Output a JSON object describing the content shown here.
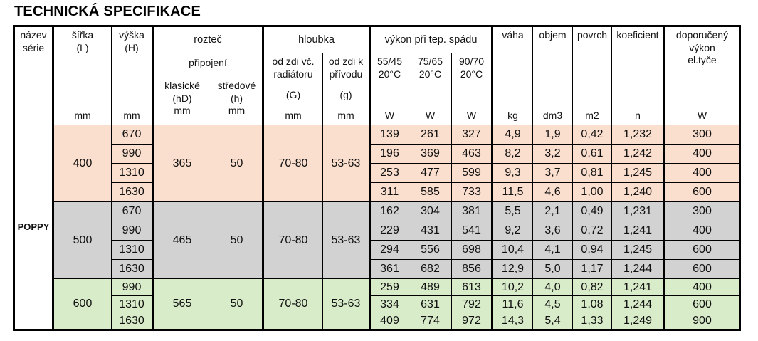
{
  "title": "TECHNICKÁ SPECIFIKACE",
  "colors": {
    "border": "#000000",
    "background": "#ffffff",
    "group_400": "#fbdfce",
    "group_500": "#d2d2d2",
    "group_600": "#d9ecca"
  },
  "table": {
    "header": {
      "name_label": "název\nsérie",
      "width_label": "šířka\n(L)",
      "width_unit": "mm",
      "height_label": "výška\n(H)",
      "height_unit": "mm",
      "pitch_group": "rozteč",
      "connection_label": "připojení",
      "pitch_classic": {
        "label": "klasické",
        "code": "(hD)",
        "unit": "mm"
      },
      "pitch_central": {
        "label": "středové",
        "code": "(h)",
        "unit": "mm"
      },
      "depth_group": "hloubka",
      "depth_incl": {
        "label": "od zdi vč.\nradiátoru",
        "code": "(G)",
        "unit": "mm"
      },
      "depth_supply": {
        "label": "od zdi k\npřívodu",
        "code": "(g)",
        "unit": "mm"
      },
      "power_group": "výkon při tep. spádu",
      "power_cols": [
        {
          "gradient": "55/45",
          "temp": "20°C",
          "unit": "W"
        },
        {
          "gradient": "75/65",
          "temp": "20°C",
          "unit": "W"
        },
        {
          "gradient": "90/70",
          "temp": "20°C",
          "unit": "W"
        }
      ],
      "weight": {
        "label": "váha",
        "unit": "kg"
      },
      "volume": {
        "label": "objem",
        "unit": "dm3"
      },
      "surface": {
        "label": "povrch",
        "unit": "m2"
      },
      "coefficient": {
        "label": "koeficient",
        "unit": "n"
      },
      "recommended": {
        "label": "doporučený\nvýkon\nel.tyče",
        "unit": "W"
      }
    },
    "series_name": "POPPY",
    "groups": [
      {
        "width": "400",
        "classic": "365",
        "central": "50",
        "depth_incl": "70-80",
        "depth_supply": "53-63",
        "color": "#fbdfce",
        "rows": [
          {
            "height": "670",
            "p5545": "139",
            "p7565": "261",
            "p9070": "327",
            "weight": "4,9",
            "volume": "1,9",
            "surface": "0,42",
            "coefficient": "1,232",
            "recommended": "300"
          },
          {
            "height": "990",
            "p5545": "196",
            "p7565": "369",
            "p9070": "463",
            "weight": "8,2",
            "volume": "3,2",
            "surface": "0,61",
            "coefficient": "1,242",
            "recommended": "400"
          },
          {
            "height": "1310",
            "p5545": "253",
            "p7565": "477",
            "p9070": "599",
            "weight": "9,3",
            "volume": "3,7",
            "surface": "0,81",
            "coefficient": "1,245",
            "recommended": "400"
          },
          {
            "height": "1630",
            "p5545": "311",
            "p7565": "585",
            "p9070": "733",
            "weight": "11,5",
            "volume": "4,6",
            "surface": "1,00",
            "coefficient": "1,240",
            "recommended": "600"
          }
        ]
      },
      {
        "width": "500",
        "classic": "465",
        "central": "50",
        "depth_incl": "70-80",
        "depth_supply": "53-63",
        "color": "#d2d2d2",
        "rows": [
          {
            "height": "670",
            "p5545": "162",
            "p7565": "304",
            "p9070": "381",
            "weight": "5,5",
            "volume": "2,1",
            "surface": "0,49",
            "coefficient": "1,231",
            "recommended": "300"
          },
          {
            "height": "990",
            "p5545": "229",
            "p7565": "431",
            "p9070": "541",
            "weight": "9,2",
            "volume": "3,6",
            "surface": "0,72",
            "coefficient": "1,241",
            "recommended": "400"
          },
          {
            "height": "1310",
            "p5545": "294",
            "p7565": "556",
            "p9070": "698",
            "weight": "10,4",
            "volume": "4,1",
            "surface": "0,94",
            "coefficient": "1,245",
            "recommended": "600"
          },
          {
            "height": "1630",
            "p5545": "361",
            "p7565": "682",
            "p9070": "856",
            "weight": "12,9",
            "volume": "5,0",
            "surface": "1,17",
            "coefficient": "1,244",
            "recommended": "600"
          }
        ]
      },
      {
        "width": "600",
        "classic": "565",
        "central": "50",
        "depth_incl": "70-80",
        "depth_supply": "53-63",
        "color": "#d9ecca",
        "rows": [
          {
            "height": "990",
            "p5545": "259",
            "p7565": "489",
            "p9070": "613",
            "weight": "10,2",
            "volume": "4,0",
            "surface": "0,82",
            "coefficient": "1,241",
            "recommended": "400"
          },
          {
            "height": "1310",
            "p5545": "334",
            "p7565": "631",
            "p9070": "792",
            "weight": "11,6",
            "volume": "4,5",
            "surface": "1,08",
            "coefficient": "1,244",
            "recommended": "600"
          },
          {
            "height": "1630",
            "p5545": "409",
            "p7565": "774",
            "p9070": "972",
            "weight": "14,3",
            "volume": "5,4",
            "surface": "1,33",
            "coefficient": "1,249",
            "recommended": "900"
          }
        ]
      }
    ]
  }
}
